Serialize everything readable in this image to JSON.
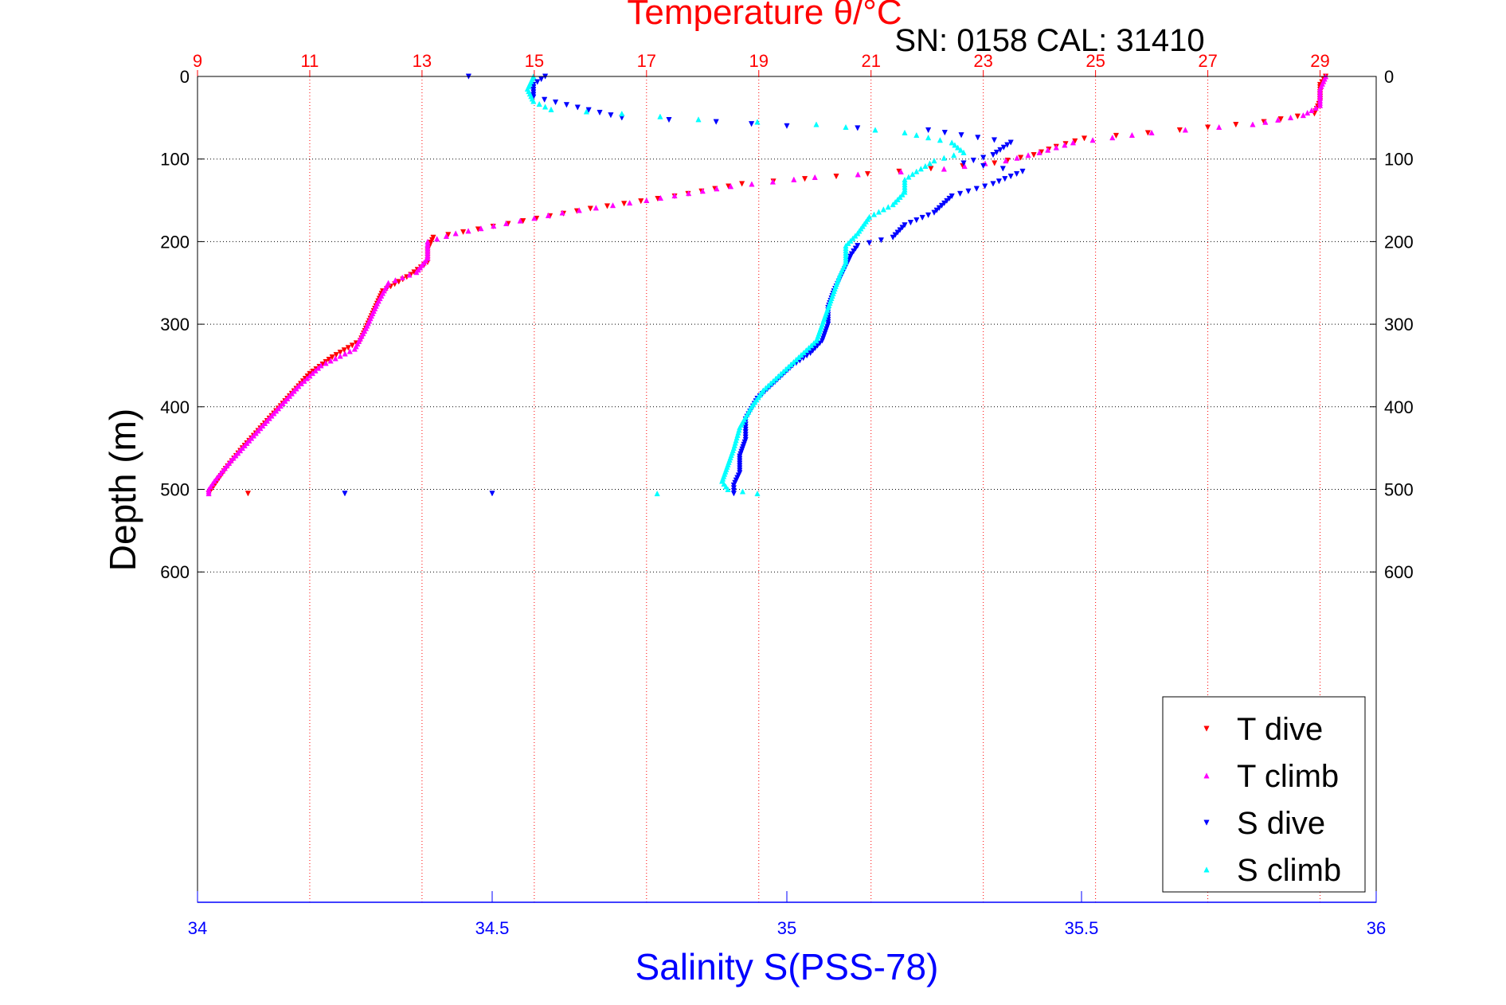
{
  "chart_data": {
    "type": "scatter",
    "title": "Temperature θ/°C",
    "subtitle": "SN: 0158  CAL: 31410",
    "xlabel": "Salinity S(PSS-78)",
    "ylabel": "Depth (m)",
    "temperature_axis": {
      "range": [
        9,
        30
      ],
      "ticks": [
        9,
        11,
        13,
        15,
        17,
        19,
        21,
        23,
        25,
        27,
        29
      ],
      "color": "#ff0000"
    },
    "salinity_axis": {
      "range": [
        34,
        36
      ],
      "ticks": [
        "34",
        "34.5",
        "35",
        "35.5",
        "36"
      ],
      "color": "#0000ff"
    },
    "depth_axis": {
      "range": [
        0,
        1000
      ],
      "reversed": true,
      "ticks": [
        0,
        100,
        200,
        300,
        400,
        500,
        600
      ]
    },
    "grid": true,
    "legend": {
      "position": "bottom-right"
    },
    "series": [
      {
        "name": "T dive",
        "axis": "temperature",
        "color": "#ff0000",
        "marker": "triangle-down",
        "points": [
          [
            29.1,
            0
          ],
          [
            29.0,
            10
          ],
          [
            29.0,
            30
          ],
          [
            28.9,
            45
          ],
          [
            28.0,
            55
          ],
          [
            26.5,
            65
          ],
          [
            24.8,
            75
          ],
          [
            24.3,
            85
          ],
          [
            23.9,
            95
          ],
          [
            23.2,
            105
          ],
          [
            21.5,
            115
          ],
          [
            18.7,
            130
          ],
          [
            17.5,
            145
          ],
          [
            16.0,
            160
          ],
          [
            14.8,
            175
          ],
          [
            14.0,
            185
          ],
          [
            13.2,
            195
          ],
          [
            13.1,
            210
          ],
          [
            13.1,
            225
          ],
          [
            12.8,
            240
          ],
          [
            12.3,
            260
          ],
          [
            12.1,
            290
          ],
          [
            11.9,
            320
          ],
          [
            11.4,
            340
          ],
          [
            11.0,
            360
          ],
          [
            10.6,
            390
          ],
          [
            10.2,
            420
          ],
          [
            9.8,
            450
          ],
          [
            9.5,
            475
          ],
          [
            9.3,
            495
          ],
          [
            9.2,
            505
          ],
          [
            9.9,
            505
          ]
        ]
      },
      {
        "name": "T climb",
        "axis": "temperature",
        "color": "#ff00ff",
        "marker": "triangle-up",
        "points": [
          [
            29.1,
            0
          ],
          [
            29.0,
            15
          ],
          [
            29.0,
            35
          ],
          [
            28.7,
            47
          ],
          [
            27.8,
            58
          ],
          [
            26.0,
            68
          ],
          [
            24.6,
            80
          ],
          [
            24.0,
            92
          ],
          [
            23.4,
            102
          ],
          [
            22.3,
            112
          ],
          [
            20.0,
            122
          ],
          [
            18.5,
            133
          ],
          [
            17.0,
            150
          ],
          [
            15.5,
            165
          ],
          [
            14.5,
            178
          ],
          [
            13.6,
            190
          ],
          [
            13.1,
            200
          ],
          [
            13.1,
            220
          ],
          [
            12.9,
            237
          ],
          [
            12.4,
            250
          ],
          [
            12.2,
            275
          ],
          [
            12.0,
            305
          ],
          [
            11.8,
            330
          ],
          [
            11.2,
            350
          ],
          [
            10.8,
            375
          ],
          [
            10.4,
            405
          ],
          [
            10.0,
            435
          ],
          [
            9.6,
            465
          ],
          [
            9.3,
            490
          ],
          [
            9.2,
            500
          ],
          [
            9.2,
            505
          ]
        ]
      },
      {
        "name": "S dive",
        "axis": "salinity",
        "color": "#0000ff",
        "marker": "triangle-down",
        "points": [
          [
            34.46,
            0
          ],
          [
            34.59,
            0
          ],
          [
            34.57,
            10
          ],
          [
            34.57,
            25
          ],
          [
            34.72,
            50
          ],
          [
            34.88,
            55
          ],
          [
            35.0,
            60
          ],
          [
            35.24,
            65
          ],
          [
            35.38,
            80
          ],
          [
            35.35,
            95
          ],
          [
            35.3,
            105
          ],
          [
            35.4,
            115
          ],
          [
            35.35,
            130
          ],
          [
            35.28,
            145
          ],
          [
            35.25,
            165
          ],
          [
            35.2,
            180
          ],
          [
            35.18,
            195
          ],
          [
            35.12,
            205
          ],
          [
            35.11,
            215
          ],
          [
            35.1,
            230
          ],
          [
            35.09,
            245
          ],
          [
            35.08,
            260
          ],
          [
            35.07,
            280
          ],
          [
            35.07,
            300
          ],
          [
            35.06,
            320
          ],
          [
            35.04,
            335
          ],
          [
            35.01,
            350
          ],
          [
            34.98,
            370
          ],
          [
            34.95,
            390
          ],
          [
            34.93,
            415
          ],
          [
            34.93,
            440
          ],
          [
            34.92,
            460
          ],
          [
            34.92,
            480
          ],
          [
            34.91,
            495
          ],
          [
            34.91,
            505
          ],
          [
            34.25,
            505
          ],
          [
            34.5,
            505
          ]
        ]
      },
      {
        "name": "S climb",
        "axis": "salinity",
        "color": "#00ffff",
        "marker": "triangle-up",
        "points": [
          [
            34.57,
            0
          ],
          [
            34.56,
            15
          ],
          [
            34.57,
            30
          ],
          [
            34.6,
            40
          ],
          [
            34.72,
            45
          ],
          [
            34.85,
            52
          ],
          [
            35.05,
            58
          ],
          [
            35.2,
            68
          ],
          [
            35.28,
            80
          ],
          [
            35.3,
            92
          ],
          [
            35.25,
            102
          ],
          [
            35.22,
            115
          ],
          [
            35.2,
            125
          ],
          [
            35.2,
            140
          ],
          [
            35.18,
            155
          ],
          [
            35.14,
            170
          ],
          [
            35.12,
            190
          ],
          [
            35.1,
            205
          ],
          [
            35.1,
            225
          ],
          [
            35.09,
            240
          ],
          [
            35.08,
            260
          ],
          [
            35.07,
            280
          ],
          [
            35.06,
            300
          ],
          [
            35.05,
            320
          ],
          [
            35.02,
            340
          ],
          [
            34.99,
            360
          ],
          [
            34.96,
            380
          ],
          [
            34.94,
            400
          ],
          [
            34.92,
            425
          ],
          [
            34.91,
            450
          ],
          [
            34.9,
            470
          ],
          [
            34.89,
            490
          ],
          [
            34.9,
            500
          ],
          [
            34.95,
            505
          ],
          [
            34.78,
            505
          ]
        ]
      }
    ]
  }
}
